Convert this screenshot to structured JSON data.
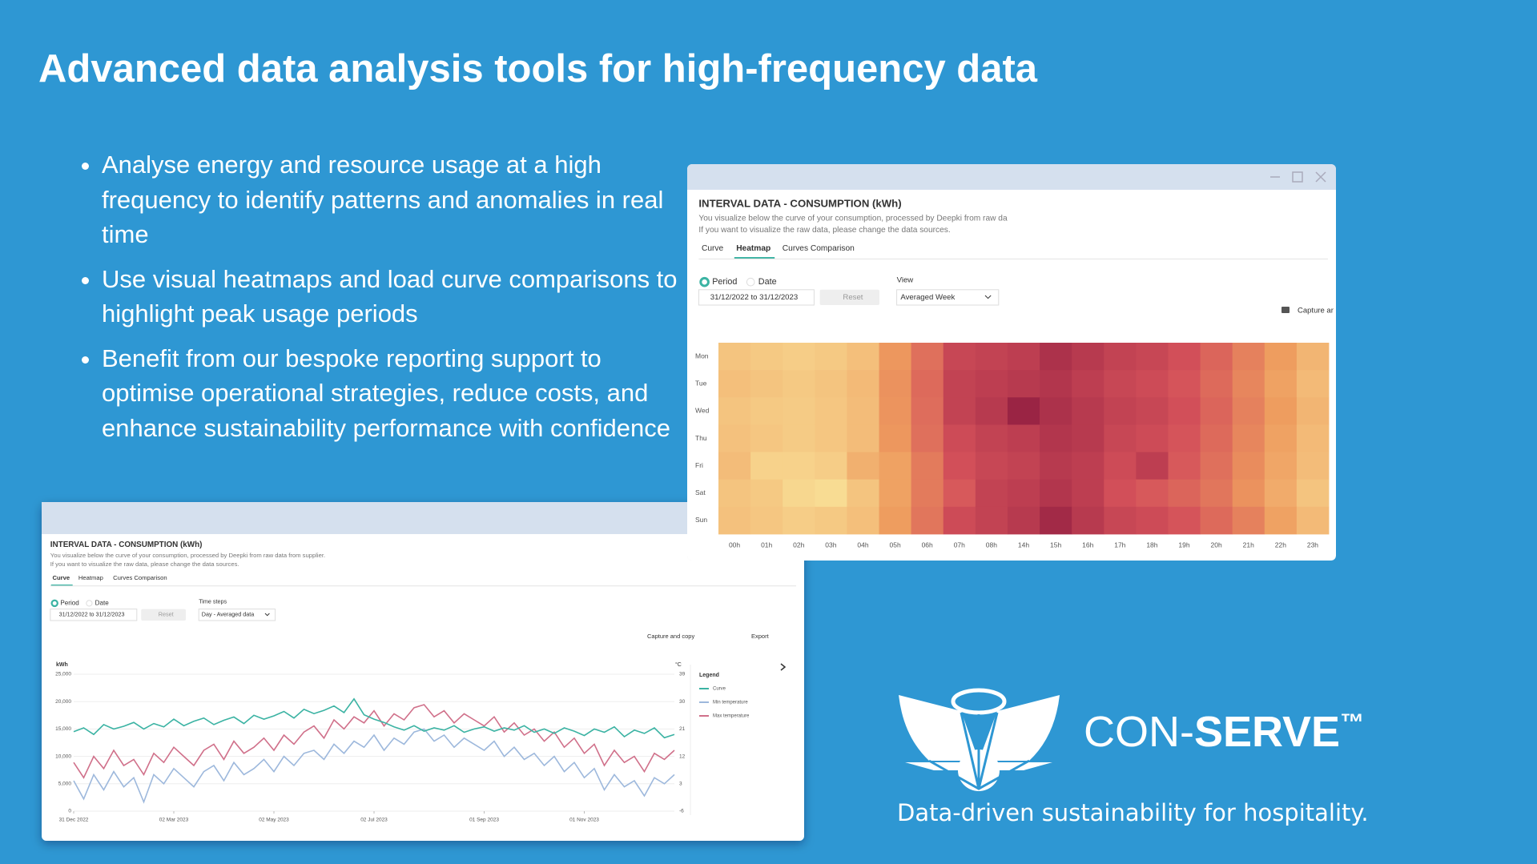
{
  "title": "Advanced data analysis tools for high-frequency data",
  "bullets": [
    "Analyse energy and resource usage at a high frequency to identify patterns and anomalies in real time",
    "Use visual heatmaps and load curve comparisons to highlight peak usage periods",
    "Benefit from our bespoke reporting support to optimise operational strategies, reduce costs, and enhance sustainability performance with confidence"
  ],
  "windows": [
    {
      "heading": "INTERVAL DATA - CONSUMPTION (kWh)",
      "description": [
        "You visualize below the curve of your consumption, processed by Deepki from raw da",
        "If you want to visualize the raw data, please change the data sources."
      ],
      "tabs": [
        "Curve",
        "Heatmap",
        "Curves Comparison"
      ],
      "radios": [
        "Period",
        "Date"
      ],
      "date_range": "31/12/2022 to 31/12/2023",
      "reset": "Reset",
      "select_label": "View",
      "select_value": "Averaged Week",
      "actions": [
        "Capture ar"
      ]
    },
    {
      "heading": "INTERVAL DATA - CONSUMPTION (kWh)",
      "description": [
        "You visualize below the curve of your consumption, processed by Deepki from raw data from supplier.",
        "If you want to visualize the raw data, please change the data sources."
      ],
      "tabs": [
        "Curve",
        "Heatmap",
        "Curves Comparison"
      ],
      "radios": [
        "Period",
        "Date"
      ],
      "date_range": "31/12/2022 to 31/12/2023",
      "reset": "Reset",
      "select_label": "Time steps",
      "select_value": "Day - Averaged data",
      "actions": [
        "Capture and copy",
        "Export"
      ]
    }
  ],
  "chart_data": [
    {
      "type": "heatmap",
      "x_labels": [
        "00h",
        "01h",
        "02h",
        "03h",
        "04h",
        "05h",
        "06h",
        "07h",
        "08h",
        "14h",
        "15h",
        "16h",
        "17h",
        "18h",
        "19h",
        "20h",
        "21h",
        "22h",
        "23h"
      ],
      "y_labels": [
        "Mon",
        "Tue",
        "Wed",
        "Thu",
        "Fri",
        "Sat",
        "Sun"
      ],
      "values": [
        [
          30,
          28,
          26,
          28,
          32,
          48,
          62,
          78,
          80,
          82,
          88,
          84,
          80,
          78,
          74,
          66,
          56,
          46,
          36
        ],
        [
          32,
          30,
          28,
          30,
          34,
          50,
          64,
          80,
          82,
          84,
          86,
          82,
          78,
          76,
          72,
          64,
          54,
          44,
          34
        ],
        [
          30,
          28,
          27,
          29,
          33,
          49,
          63,
          80,
          84,
          95,
          88,
          84,
          80,
          78,
          74,
          66,
          56,
          46,
          36
        ],
        [
          31,
          29,
          27,
          29,
          33,
          48,
          62,
          76,
          80,
          82,
          86,
          84,
          78,
          76,
          72,
          64,
          54,
          44,
          34
        ],
        [
          33,
          24,
          24,
          26,
          38,
          44,
          58,
          74,
          78,
          80,
          84,
          82,
          76,
          82,
          70,
          62,
          52,
          42,
          33
        ],
        [
          30,
          28,
          22,
          20,
          30,
          44,
          58,
          70,
          80,
          82,
          86,
          82,
          74,
          70,
          66,
          60,
          50,
          40,
          30
        ],
        [
          31,
          29,
          26,
          28,
          32,
          46,
          60,
          76,
          80,
          84,
          92,
          84,
          78,
          76,
          72,
          64,
          56,
          44,
          34
        ]
      ],
      "zlim": [
        20,
        100
      ],
      "colors": [
        "#f8dc93",
        "#ee9b5e",
        "#d4505a",
        "#8c1a3f"
      ]
    },
    {
      "type": "line",
      "y_label": "kWh",
      "y2_label": "°C",
      "legend_title": "Legend",
      "xlim": [
        0,
        60
      ],
      "xticks": [
        {
          "value": 0,
          "label": "31 Dec 2022"
        },
        {
          "value": 10,
          "label": "02 Mar 2023"
        },
        {
          "value": 20,
          "label": "02 May 2023"
        },
        {
          "value": 30,
          "label": "02 Jul 2023"
        },
        {
          "value": 41,
          "label": "01 Sep 2023"
        },
        {
          "value": 51,
          "label": "01 Nov 2023"
        }
      ],
      "ylim": [
        0,
        25000
      ],
      "yticks": [
        0,
        {
          "value": 5000,
          "label": "5,000"
        },
        {
          "value": 10000,
          "label": "10,000"
        },
        {
          "value": 15000,
          "label": "15,000"
        },
        {
          "value": 20000,
          "label": "20,000"
        },
        {
          "value": 25000,
          "label": "25,000"
        }
      ],
      "y2lim": [
        -6,
        39
      ],
      "y2ticks": [
        -6,
        3,
        12,
        21,
        30,
        39
      ],
      "grid": true,
      "series": [
        {
          "name": "Curve",
          "color": "#3bb3a3",
          "values": [
            14500,
            15200,
            14000,
            15800,
            15000,
            15500,
            16200,
            15000,
            16000,
            15400,
            16800,
            15600,
            16400,
            17000,
            15800,
            16600,
            17200,
            16000,
            17500,
            16800,
            17400,
            18200,
            17000,
            18600,
            17800,
            18400,
            19200,
            18000,
            20500,
            17600,
            16800,
            16200,
            15400,
            14800,
            15600,
            14600,
            15200,
            14800,
            15600,
            14400,
            15000,
            15400,
            14600,
            15200,
            14800,
            15600,
            14400,
            15000,
            14200,
            15200,
            14600,
            13800,
            15000,
            14400,
            15400,
            13600,
            14800,
            14200,
            15200,
            13400,
            14000
          ]
        },
        {
          "name": "Min temperature",
          "color": "#9db8dc",
          "axis": "y2",
          "values": [
            4,
            -2,
            6,
            1,
            7,
            2,
            5,
            -3,
            6,
            3,
            8,
            5,
            2,
            7,
            9,
            4,
            10,
            6,
            8,
            11,
            7,
            12,
            9,
            13,
            14,
            11,
            16,
            13,
            17,
            15,
            19,
            14,
            18,
            16,
            20,
            21,
            17,
            19,
            15,
            18,
            16,
            14,
            17,
            12,
            15,
            11,
            13,
            9,
            12,
            7,
            10,
            5,
            8,
            1,
            6,
            2,
            4,
            -1,
            5,
            3,
            6
          ]
        },
        {
          "name": "Max temperature",
          "color": "#d0708a",
          "axis": "y2",
          "values": [
            10,
            5,
            12,
            8,
            14,
            9,
            11,
            6,
            13,
            10,
            15,
            12,
            9,
            14,
            16,
            11,
            17,
            13,
            15,
            18,
            14,
            19,
            16,
            20,
            22,
            18,
            24,
            21,
            25,
            23,
            27,
            22,
            26,
            24,
            28,
            29,
            25,
            27,
            23,
            26,
            24,
            22,
            25,
            20,
            23,
            19,
            21,
            17,
            20,
            15,
            18,
            13,
            16,
            9,
            14,
            10,
            12,
            7,
            13,
            11,
            14
          ]
        }
      ]
    }
  ],
  "brand": {
    "prefix": "CON-",
    "bold": "SERVE",
    "mark": "™",
    "tagline": "Data-driven sustainability for hospitality."
  }
}
